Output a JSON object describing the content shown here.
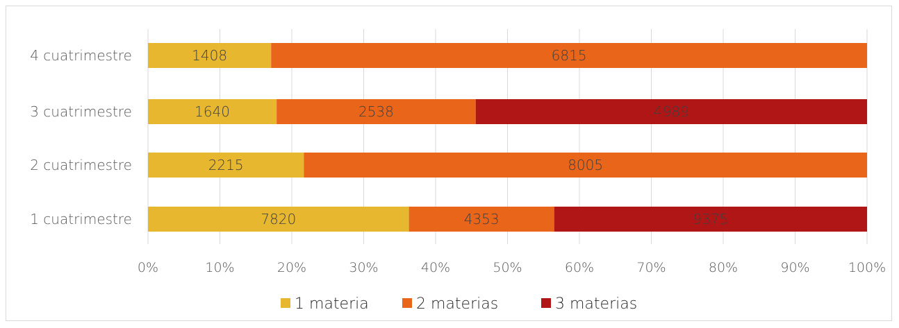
{
  "chart_data": {
    "type": "bar",
    "orientation": "horizontal",
    "stacking": "percent",
    "categories": [
      "1 cuatrimestre",
      "2 cuatrimestre",
      "3 cuatrimestre",
      "4 cuatrimestre"
    ],
    "series": [
      {
        "name": "1 materia",
        "values": [
          7820,
          2215,
          1640,
          1408
        ],
        "color": "#E6B72F"
      },
      {
        "name": "2 materias",
        "values": [
          4353,
          8005,
          2538,
          6815
        ],
        "color": "#E96519"
      },
      {
        "name": "3 materias",
        "values": [
          9375,
          null,
          4989,
          null
        ],
        "color": "#B01616"
      }
    ],
    "xticks": [
      "0%",
      "10%",
      "20%",
      "30%",
      "40%",
      "50%",
      "60%",
      "70%",
      "80%",
      "90%",
      "100%"
    ],
    "xlim": [
      0,
      100
    ],
    "grid": true,
    "legend_position": "bottom",
    "title": "",
    "xlabel": "",
    "ylabel": ""
  }
}
